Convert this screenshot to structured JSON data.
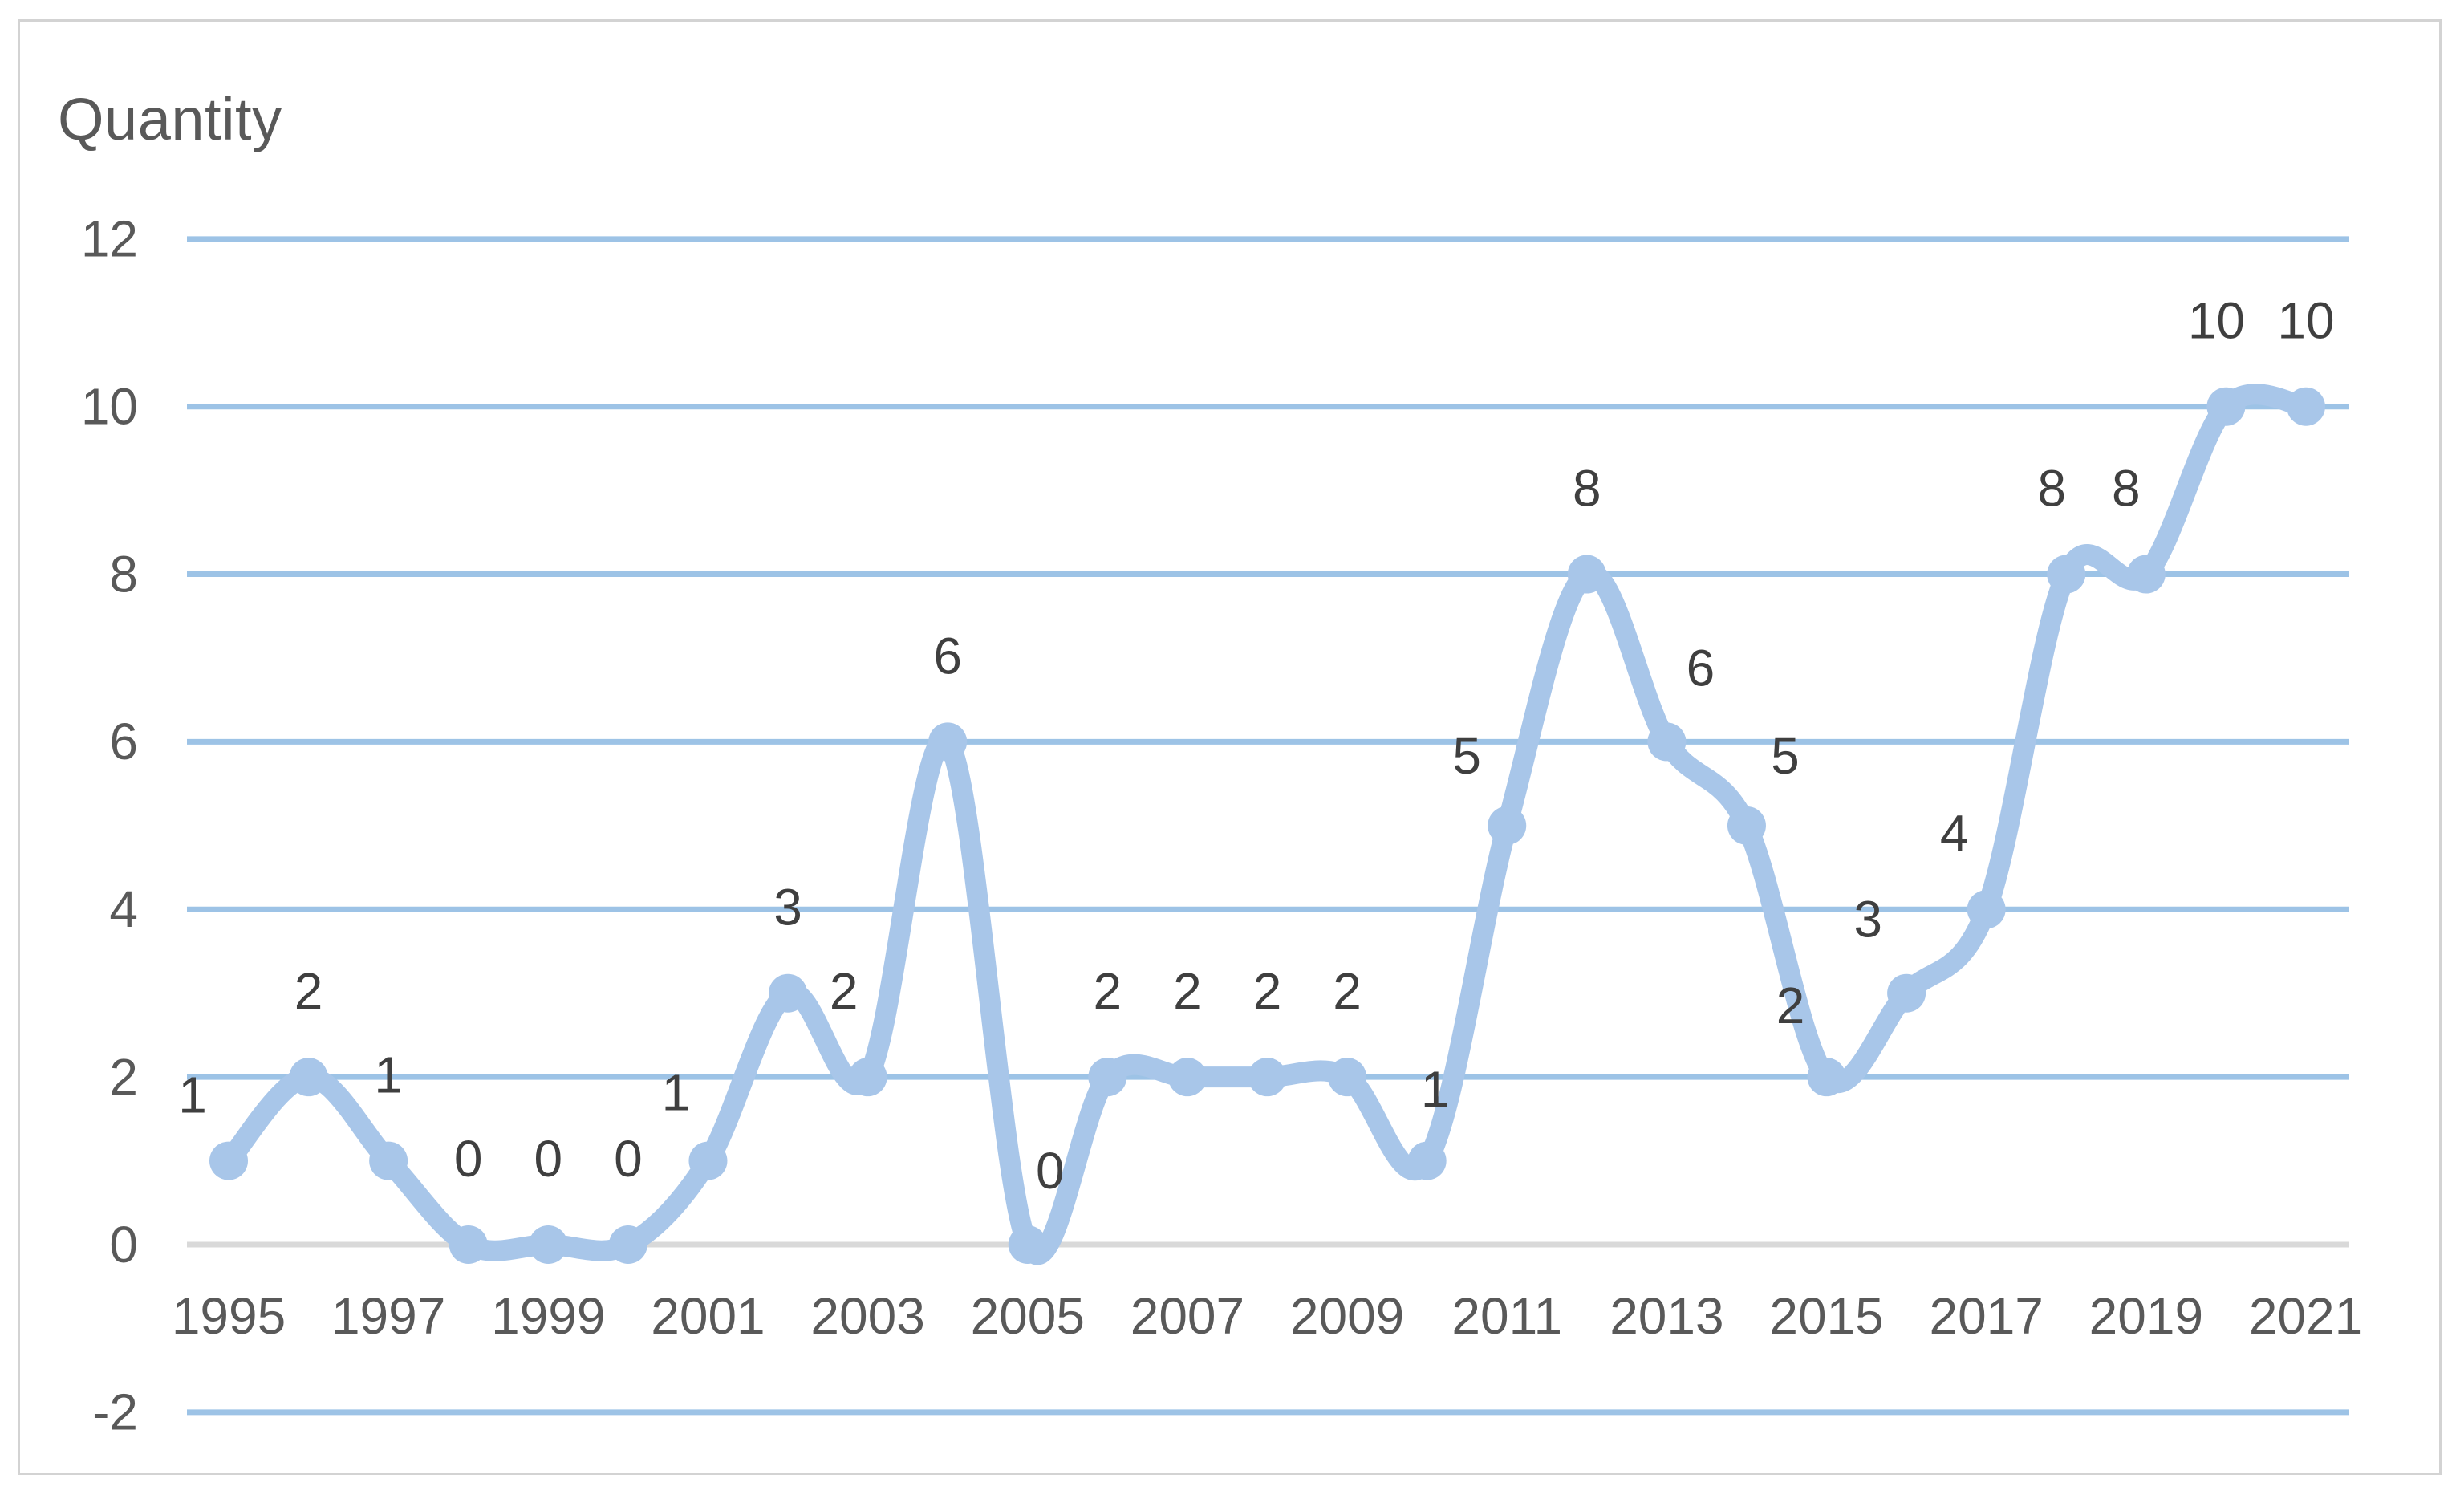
{
  "chart_data": {
    "type": "line",
    "title": "Quantity",
    "smooth": true,
    "grid": true,
    "legend": false,
    "xlabel": "",
    "ylabel": "",
    "ylim": [
      -2,
      12
    ],
    "y_ticks": [
      12,
      10,
      8,
      6,
      4,
      2,
      0,
      -2
    ],
    "x_tick_labels": [
      "1995",
      "1997",
      "1999",
      "2001",
      "2003",
      "2005",
      "2007",
      "2009",
      "2011",
      "2013",
      "2015",
      "2017",
      "2019",
      "2021"
    ],
    "x": [
      1995,
      1996,
      1997,
      1998,
      1999,
      2000,
      2001,
      2002,
      2003,
      2004,
      2005,
      2006,
      2007,
      2008,
      2009,
      2010,
      2011,
      2012,
      2013,
      2014,
      2015,
      2016,
      2017,
      2018,
      2019,
      2020,
      2021
    ],
    "values": [
      1,
      2,
      1,
      0,
      0,
      0,
      1,
      3,
      2,
      6,
      0,
      2,
      2,
      2,
      2,
      1,
      5,
      8,
      6,
      5,
      2,
      3,
      4,
      8,
      8,
      10,
      10
    ],
    "data_labels": [
      "1",
      "2",
      "1",
      "0",
      "0",
      "0",
      "1",
      "3",
      "2",
      "6",
      "0",
      "2",
      "2",
      "2",
      "2",
      "1",
      "5",
      "8",
      "6",
      "5",
      "2",
      "3",
      "4",
      "8",
      "8",
      "10",
      "10"
    ],
    "colors": {
      "line": "#a8c6e9",
      "marker": "#a8c6e9",
      "gridline": "#9dc3e6",
      "zero_gridline": "#d9d9d9",
      "axis_text": "#595959",
      "data_label_text": "#3f3f3f",
      "title_text": "#595959",
      "frame_border": "#d3d3d3"
    }
  }
}
